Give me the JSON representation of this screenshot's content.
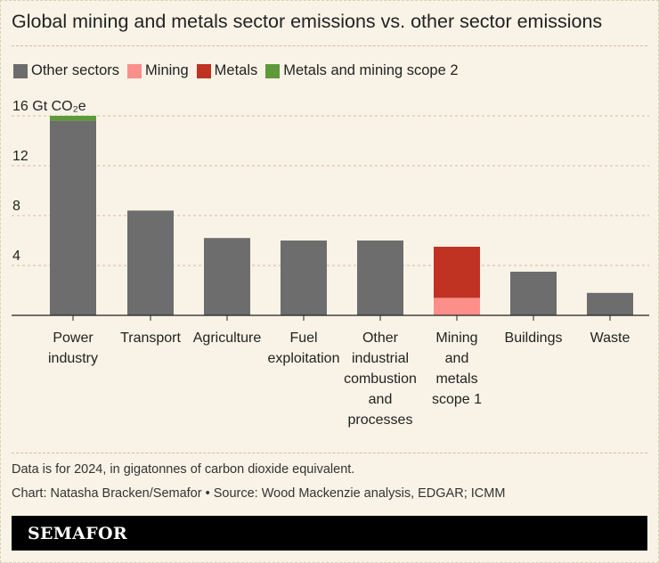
{
  "header": {
    "title": "Global mining and metals sector emissions vs. other sector emissions"
  },
  "colors": {
    "background": "#f8f3e6",
    "grid": "#d9b9a6",
    "other_sectors": "#6d6d6d",
    "mining": "#fd8f8b",
    "metals": "#c03222",
    "scope2": "#5e9a3a"
  },
  "chart_data": {
    "type": "bar",
    "stacked": true,
    "title": "Global mining and metals sector emissions vs. other sector emissions",
    "ylabel": "Gt CO₂e",
    "ylim": [
      0,
      16
    ],
    "yticks": [
      4,
      8,
      12,
      16
    ],
    "ytick_labels": [
      "4",
      "8",
      "12",
      "16 Gt CO₂e"
    ],
    "grid": true,
    "legend_position": "top-left",
    "categories": [
      "Power industry",
      "Transport",
      "Agriculture",
      "Fuel exploitation",
      "Other industrial combustion and processes",
      "Mining metals scope 1",
      "Buildings",
      "Waste"
    ],
    "category_labels": [
      [
        "Power",
        "industry"
      ],
      [
        "Transport"
      ],
      [
        "Agriculture"
      ],
      [
        "Fuel",
        "exploitation"
      ],
      [
        "Other",
        "industrial",
        "combustion",
        "and",
        "processes"
      ],
      [
        "Mining",
        "and",
        "metals",
        "scope 1"
      ],
      [
        "Buildings"
      ],
      [
        "Waste"
      ]
    ],
    "series": [
      {
        "name": "Other sectors",
        "color": "#6d6d6d",
        "values": [
          15.6,
          8.4,
          6.2,
          6.0,
          6.0,
          0,
          3.5,
          1.8
        ]
      },
      {
        "name": "Mining",
        "color": "#fd8f8b",
        "values": [
          0,
          0,
          0,
          0,
          0,
          1.4,
          0,
          0
        ]
      },
      {
        "name": "Metals",
        "color": "#c03222",
        "values": [
          0,
          0,
          0,
          0,
          0,
          4.1,
          0,
          0
        ]
      },
      {
        "name": "Metals and mining scope 2",
        "color": "#5e9a3a",
        "values": [
          0.4,
          0,
          0,
          0,
          0,
          0,
          0,
          0
        ]
      }
    ]
  },
  "footer": {
    "note": "Data is for 2024, in gigatonnes of carbon dioxide equivalent.",
    "credit": "Chart: Natasha Bracken/Semafor • Source: Wood Mackenzie analysis, EDGAR; ICMM",
    "brand": "SEMAFOR"
  }
}
